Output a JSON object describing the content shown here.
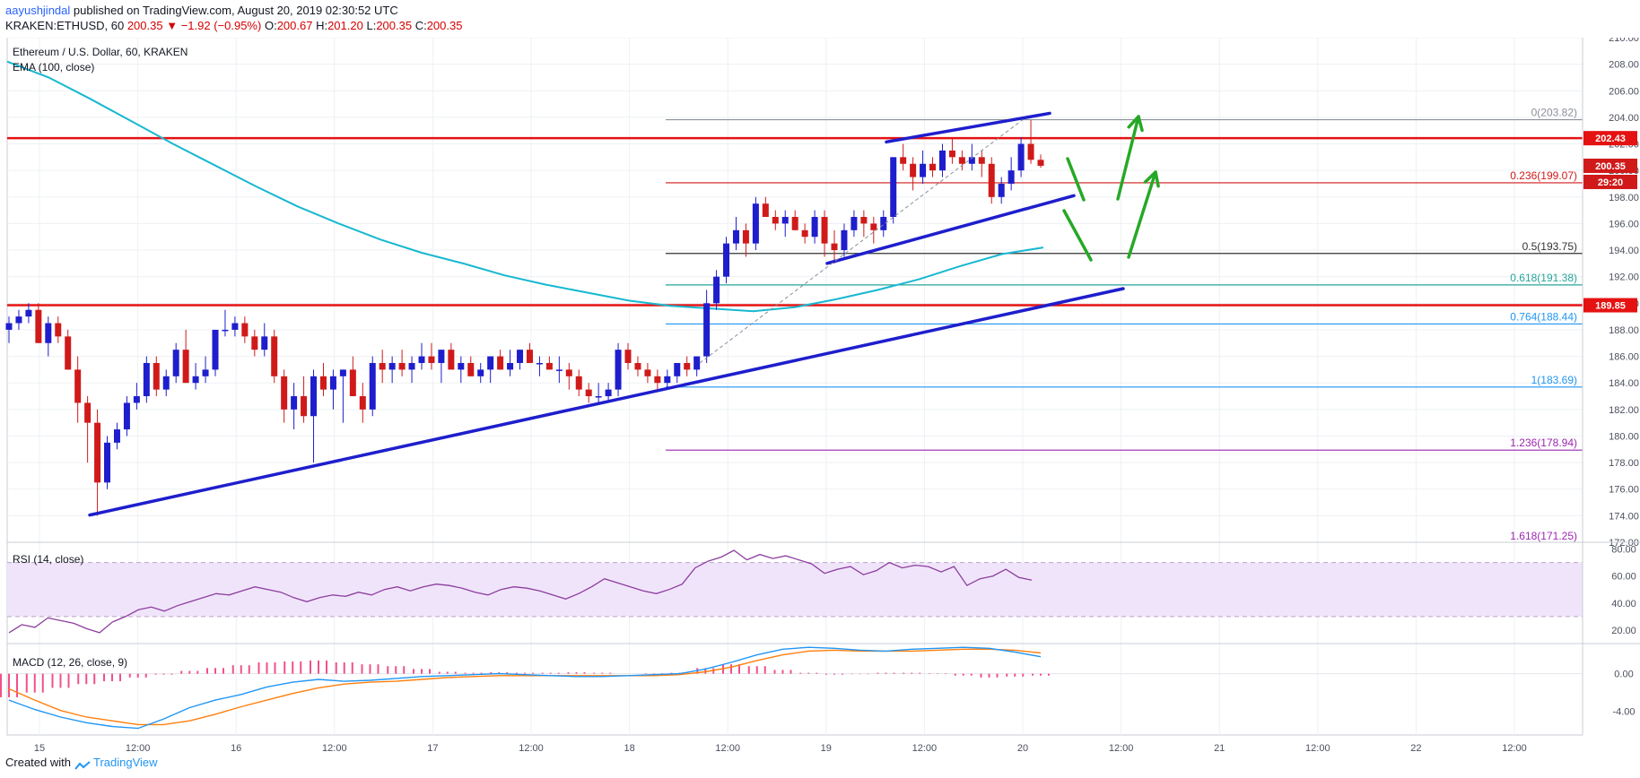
{
  "header": {
    "user": "aayushjindal",
    "published": " published on TradingView.com, August 20, 2019 02:30:52 UTC",
    "symbol": "KRAKEN:ETHUSD, 60",
    "last": "200.35",
    "change": "▼ −1.92 (−0.95%)",
    "o_label": "O:",
    "o_val": "200.67",
    "h_label": "H:",
    "h_val": "201.20",
    "l_label": "L:",
    "l_val": "200.35",
    "c_label": "C:",
    "c_val": "200.35"
  },
  "legend": {
    "title": "Ethereum / U.S. Dollar, 60, KRAKEN",
    "ema": "EMA (100, close)",
    "rsi": "RSI (14, close)",
    "macd": "MACD (12, 26, close, 9)"
  },
  "footer": {
    "created": "Created with",
    "brand": "TradingView"
  },
  "colors": {
    "up": "#1e1ecd",
    "down": "#d01a1a",
    "ema": "#17b8d0",
    "trend": "#1e1ecd",
    "resistance": "#e51212",
    "arrow": "#26a826",
    "rsi": "#8c3e9e",
    "macd": "#2196f3",
    "signal": "#ff7f0e",
    "hist": "#f0508a"
  },
  "chart_data": {
    "type": "candlestick",
    "title": "Ethereum / U.S. Dollar, 60, KRAKEN",
    "ylim": [
      172,
      210
    ],
    "price_ticks": [
      "210.00",
      "208.00",
      "206.00",
      "204.00",
      "202.00",
      "200.00",
      "198.00",
      "196.00",
      "194.00",
      "192.00",
      "190.00",
      "188.00",
      "186.00",
      "184.00",
      "182.00",
      "180.00",
      "178.00",
      "176.00",
      "174.00",
      "172.00"
    ],
    "time_labels": [
      "15",
      "12:00",
      "16",
      "12:00",
      "17",
      "12:00",
      "18",
      "12:00",
      "19",
      "12:00",
      "20",
      "12:00",
      "21",
      "12:00",
      "22",
      "12:00"
    ],
    "candles_ohlc": [
      [
        188,
        189,
        187,
        188.5
      ],
      [
        188.5,
        189.5,
        188,
        189
      ],
      [
        189,
        190,
        188.5,
        189.5
      ],
      [
        189.5,
        190,
        187,
        187
      ],
      [
        187,
        189,
        186,
        188.5
      ],
      [
        188.5,
        189,
        187,
        187.5
      ],
      [
        187.5,
        188,
        185,
        185
      ],
      [
        185,
        186,
        181,
        182.5
      ],
      [
        182.5,
        183,
        178,
        181
      ],
      [
        181,
        182,
        174,
        176.5
      ],
      [
        176.5,
        180,
        176,
        179.5
      ],
      [
        179.5,
        181,
        179,
        180.5
      ],
      [
        180.5,
        183,
        180,
        182.5
      ],
      [
        182.5,
        184,
        182,
        183
      ],
      [
        183,
        186,
        182.5,
        185.5
      ],
      [
        185.5,
        186,
        183,
        183.5
      ],
      [
        183.5,
        185,
        183,
        184.5
      ],
      [
        184.5,
        187,
        184,
        186.5
      ],
      [
        186.5,
        188,
        185,
        184
      ],
      [
        184,
        185.5,
        183.5,
        184.5
      ],
      [
        184.5,
        186,
        184,
        185
      ],
      [
        185,
        187,
        184.5,
        188
      ],
      [
        188,
        189.5,
        187.5,
        188
      ],
      [
        188,
        189,
        187.5,
        188.5
      ],
      [
        188.5,
        189,
        187,
        187.5
      ],
      [
        187.5,
        188,
        186,
        186.5
      ],
      [
        186.5,
        188.5,
        186,
        187.5
      ],
      [
        187.5,
        188,
        184,
        184.5
      ],
      [
        184.5,
        185,
        181,
        182
      ],
      [
        182,
        184,
        180.5,
        183
      ],
      [
        183,
        184.5,
        181,
        181.5
      ],
      [
        181.5,
        185,
        178,
        184.5
      ],
      [
        184.5,
        185.5,
        183,
        183.5
      ],
      [
        183.5,
        185,
        182,
        184.5
      ],
      [
        184.5,
        185,
        181,
        185
      ],
      [
        185,
        186,
        184,
        183
      ],
      [
        183,
        184,
        181,
        182
      ],
      [
        182,
        186,
        181.5,
        185.5
      ],
      [
        185.5,
        186.5,
        184,
        185
      ],
      [
        185,
        186,
        184,
        185.5
      ],
      [
        185.5,
        186.5,
        184.5,
        185
      ],
      [
        185,
        186,
        184,
        185.5
      ],
      [
        185.5,
        187,
        185,
        186
      ],
      [
        186,
        187,
        185,
        185.5
      ],
      [
        185.5,
        186.5,
        184,
        186.5
      ],
      [
        186.5,
        187,
        185.5,
        185
      ],
      [
        185,
        186,
        184,
        185.5
      ],
      [
        185.5,
        186,
        184.5,
        184.5
      ],
      [
        184.5,
        185.5,
        184,
        185
      ],
      [
        185,
        186,
        184,
        186
      ],
      [
        186,
        186.5,
        185,
        185
      ],
      [
        185,
        186.5,
        184.5,
        185.5
      ],
      [
        185.5,
        186.5,
        185,
        186.5
      ],
      [
        186.5,
        187,
        185.5,
        185.5
      ],
      [
        185.5,
        186,
        184.5,
        185.5
      ],
      [
        185.5,
        186,
        185,
        185
      ],
      [
        185,
        186,
        184,
        185
      ],
      [
        185,
        185.5,
        183.5,
        184.5
      ],
      [
        184.5,
        185,
        183,
        183.5
      ],
      [
        183.5,
        184,
        182.5,
        183
      ],
      [
        183,
        184,
        182.5,
        183
      ],
      [
        183,
        184,
        182.5,
        183.5
      ],
      [
        183.5,
        187,
        183,
        186.5
      ],
      [
        186.5,
        187,
        185,
        185.5
      ],
      [
        185.5,
        186,
        184.5,
        185
      ],
      [
        185,
        185.5,
        184,
        184.5
      ],
      [
        184.5,
        185,
        183.5,
        184
      ],
      [
        184,
        185,
        183.5,
        184.5
      ],
      [
        184.5,
        185.5,
        184,
        185.5
      ],
      [
        185.5,
        186,
        184.5,
        185
      ],
      [
        185,
        186,
        184.5,
        186
      ],
      [
        186,
        191,
        185.5,
        190
      ],
      [
        190,
        192.5,
        189.5,
        192
      ],
      [
        192,
        195,
        191.5,
        194.5
      ],
      [
        194.5,
        196.5,
        194,
        195.5
      ],
      [
        195.5,
        196,
        193.5,
        194.5
      ],
      [
        194.5,
        198,
        194,
        197.5
      ],
      [
        197.5,
        198,
        196.5,
        196.5
      ],
      [
        196.5,
        197,
        195.5,
        196
      ],
      [
        196,
        197,
        195,
        196.5
      ],
      [
        196.5,
        197,
        195.5,
        195.5
      ],
      [
        195.5,
        196,
        194.5,
        195
      ],
      [
        195,
        197,
        194.5,
        196.5
      ],
      [
        196.5,
        197,
        193.5,
        194.5
      ],
      [
        194.5,
        195.5,
        193,
        194
      ],
      [
        194,
        196,
        193.5,
        195.5
      ],
      [
        195.5,
        197,
        195,
        196.5
      ],
      [
        196.5,
        197,
        195,
        196
      ],
      [
        196,
        196.5,
        194.5,
        195.5
      ],
      [
        195.5,
        197,
        195,
        196.5
      ],
      [
        196.5,
        201,
        196,
        201
      ],
      [
        201,
        202,
        200,
        200.5
      ],
      [
        200.5,
        201,
        198.5,
        199.5
      ],
      [
        199.5,
        201.5,
        199,
        200.5
      ],
      [
        200.5,
        201,
        199.5,
        200
      ],
      [
        200,
        202,
        199.5,
        201.5
      ],
      [
        201.5,
        202.5,
        200.5,
        201
      ],
      [
        201,
        201.5,
        200,
        200.5
      ],
      [
        200.5,
        202,
        200,
        201
      ],
      [
        201,
        201.5,
        199.5,
        200.5
      ],
      [
        200.5,
        201,
        197.5,
        198
      ],
      [
        198,
        199.5,
        197.5,
        199
      ],
      [
        199,
        201,
        198.5,
        200
      ],
      [
        200,
        202.5,
        199.5,
        202
      ],
      [
        202,
        203.8,
        200.5,
        200.8
      ],
      [
        200.8,
        201.2,
        200.2,
        200.35
      ]
    ],
    "ema_100": [
      208.2,
      207,
      205.4,
      203.7,
      202,
      200.4,
      198.8,
      197.3,
      196,
      194.8,
      193.8,
      193,
      192.1,
      191.4,
      190.8,
      190.2,
      189.8,
      189.6,
      189.4,
      189.7,
      190.3,
      191,
      191.8,
      192.8,
      193.7,
      194.2
    ],
    "horizontal_lines": [
      {
        "label": "202.43",
        "value": 202.43,
        "kind": "resistance"
      },
      {
        "label": "189.85",
        "value": 189.85,
        "kind": "resistance"
      }
    ],
    "fibonacci": [
      {
        "label": "0(203.82)",
        "value": 203.82
      },
      {
        "label": "0.236(199.07)",
        "value": 199.07
      },
      {
        "label": "0.5(193.75)",
        "value": 193.75
      },
      {
        "label": "0.618(191.38)",
        "value": 191.38
      },
      {
        "label": "0.764(188.44)",
        "value": 188.44
      },
      {
        "label": "1(183.69)",
        "value": 183.69
      },
      {
        "label": "1.236(178.94)",
        "value": 178.94
      },
      {
        "label": "1.618(171.25)",
        "value": 171.25
      }
    ],
    "price_badges": [
      {
        "label": "202.43",
        "value": 202.43
      },
      {
        "label": "200.35",
        "value": 200.35
      },
      {
        "label": "29:20",
        "value": 199.6
      }
    ],
    "rsi": {
      "ylim": [
        10,
        85
      ],
      "ticks": [
        "80.00",
        "60.00",
        "40.00",
        "20.00"
      ],
      "band": [
        30,
        70
      ],
      "values": [
        18,
        24,
        22,
        29,
        27,
        25,
        21,
        18,
        26,
        30,
        35,
        37,
        34,
        38,
        41,
        44,
        47,
        46,
        49,
        52,
        50,
        48,
        44,
        41,
        44,
        46,
        45,
        48,
        46,
        50,
        52,
        49,
        52,
        54,
        53,
        51,
        48,
        46,
        50,
        52,
        51,
        49,
        46,
        43,
        47,
        52,
        58,
        55,
        52,
        49,
        47,
        50,
        54,
        66,
        71,
        74,
        79,
        72,
        76,
        73,
        75,
        72,
        69,
        62,
        65,
        67,
        61,
        64,
        70,
        66,
        68,
        67,
        63,
        67,
        53,
        58,
        60,
        65,
        59,
        57
      ]
    },
    "macd": {
      "ylim": [
        -6.5,
        3.2
      ],
      "ticks": [
        "0.00",
        "-4.00"
      ],
      "macd": [
        -2.8,
        -3.8,
        -4.6,
        -5.2,
        -5.6,
        -5.8,
        -4.8,
        -3.6,
        -2.8,
        -2.2,
        -1.4,
        -0.9,
        -0.6,
        -0.8,
        -0.7,
        -0.5,
        -0.3,
        -0.2,
        -0.1,
        0,
        -0.1,
        -0.2,
        -0.3,
        -0.3,
        -0.2,
        -0.1,
        0,
        0.5,
        1.2,
        2,
        2.6,
        2.8,
        2.7,
        2.5,
        2.4,
        2.6,
        2.7,
        2.8,
        2.7,
        2.3,
        1.8
      ],
      "signal": [
        -1.6,
        -2.8,
        -3.9,
        -4.6,
        -5,
        -5.4,
        -5.4,
        -5,
        -4.3,
        -3.5,
        -2.8,
        -2.1,
        -1.5,
        -1.1,
        -0.9,
        -0.8,
        -0.6,
        -0.4,
        -0.3,
        -0.2,
        -0.2,
        -0.2,
        -0.2,
        -0.2,
        -0.2,
        -0.2,
        -0.1,
        0.2,
        0.7,
        1.4,
        2,
        2.4,
        2.5,
        2.4,
        2.4,
        2.4,
        2.5,
        2.6,
        2.6,
        2.5,
        2.2
      ],
      "hist": [
        -2.5,
        -2,
        -1.5,
        -1.1,
        -0.8,
        -0.4,
        -0.1,
        0.3,
        0.6,
        0.9,
        1.2,
        1.3,
        1.4,
        1.2,
        1,
        0.8,
        0.5,
        0.2,
        0.1,
        0.15,
        0.1,
        0.1,
        0.15,
        0.1,
        0,
        0.05,
        0.1,
        0.6,
        1,
        0.8,
        0.4,
        0.1,
        -0.1,
        -0.05,
        0.1,
        0.1,
        0.05,
        -0.2,
        -0.4,
        -0.3,
        -0.2
      ]
    }
  }
}
